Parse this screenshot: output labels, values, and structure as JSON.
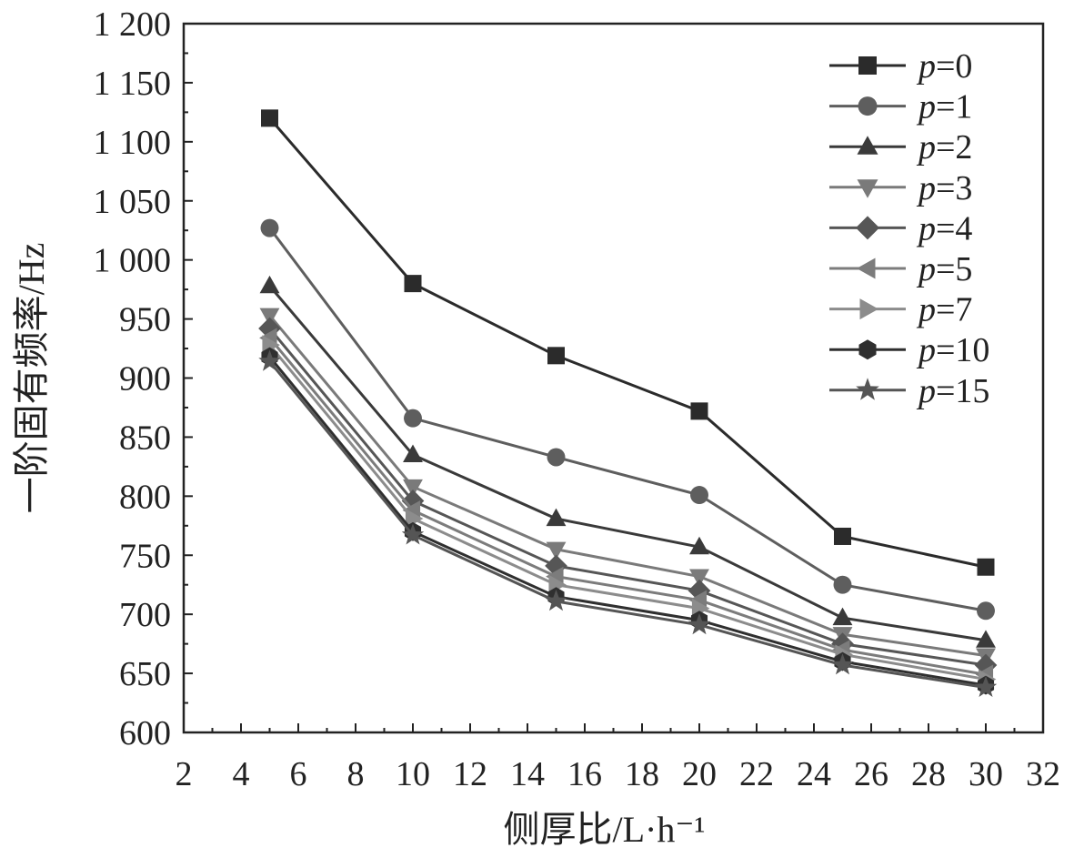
{
  "chart_data": {
    "type": "line",
    "xlabel": "侧厚比/L·h⁻¹",
    "ylabel": "一阶固有频率/Hz",
    "xlim": [
      2,
      32
    ],
    "ylim": [
      600,
      1200
    ],
    "xticks": [
      2,
      4,
      6,
      8,
      10,
      12,
      14,
      16,
      18,
      20,
      22,
      24,
      26,
      28,
      30,
      32
    ],
    "xtick_labels": [
      "2",
      "4",
      "6",
      "8",
      "10",
      "12",
      "14",
      "16",
      "18",
      "20",
      "22",
      "24",
      "26",
      "28",
      "30",
      "32"
    ],
    "yticks": [
      600,
      650,
      700,
      750,
      800,
      850,
      900,
      950,
      1000,
      1050,
      1100,
      1150,
      1200
    ],
    "ytick_labels": [
      "600",
      "650",
      "700",
      "750",
      "800",
      "850",
      "900",
      "950",
      "1 000",
      "1 050",
      "1 100",
      "1 150",
      "1 200"
    ],
    "grid": false,
    "legend_position": "top-right",
    "x": [
      5,
      10,
      15,
      20,
      25,
      30
    ],
    "series": [
      {
        "name": "p=0",
        "var": "p",
        "eq": "=0",
        "marker": "square",
        "color": "#2b2b2b",
        "values": [
          1120,
          980,
          919,
          872,
          766,
          740
        ]
      },
      {
        "name": "p=1",
        "var": "p",
        "eq": "=1",
        "marker": "circle",
        "color": "#5e5e5e",
        "values": [
          1027,
          866,
          833,
          801,
          725,
          703
        ]
      },
      {
        "name": "p=2",
        "var": "p",
        "eq": "=2",
        "marker": "triangle-up",
        "color": "#3a3a3a",
        "values": [
          978,
          835,
          781,
          757,
          697,
          678
        ]
      },
      {
        "name": "p=3",
        "var": "p",
        "eq": "=3",
        "marker": "triangle-down",
        "color": "#7a7a7a",
        "values": [
          953,
          808,
          755,
          732,
          683,
          665
        ]
      },
      {
        "name": "p=4",
        "var": "p",
        "eq": "=4",
        "marker": "diamond",
        "color": "#565656",
        "values": [
          942,
          796,
          741,
          720,
          675,
          657
        ]
      },
      {
        "name": "p=5",
        "var": "p",
        "eq": "=5",
        "marker": "triangle-left",
        "color": "#7c7c7c",
        "values": [
          934,
          788,
          732,
          712,
          670,
          649
        ]
      },
      {
        "name": "p=7",
        "var": "p",
        "eq": "=7",
        "marker": "triangle-right",
        "color": "#8c8c8c",
        "values": [
          928,
          781,
          725,
          705,
          666,
          645
        ]
      },
      {
        "name": "p=10",
        "var": "p",
        "eq": "=10",
        "marker": "hexagon",
        "color": "#2f2f2f",
        "values": [
          918,
          770,
          715,
          695,
          660,
          640
        ]
      },
      {
        "name": "p=15",
        "var": "p",
        "eq": "=15",
        "marker": "star",
        "color": "#555555",
        "values": [
          914,
          767,
          711,
          691,
          657,
          638
        ]
      }
    ]
  }
}
